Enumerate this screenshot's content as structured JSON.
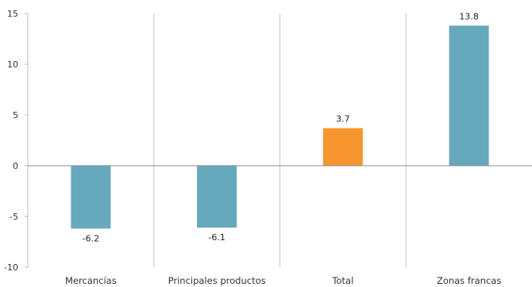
{
  "chart_data": {
    "type": "bar",
    "title": "",
    "xlabel": "",
    "ylabel": "",
    "categories": [
      "Mercancías",
      "Principales productos",
      "Total",
      "Zonas francas"
    ],
    "values": [
      -6.2,
      -6.1,
      3.7,
      13.8
    ],
    "data_labels": [
      "-6.2",
      "-6.1",
      "3.7",
      "13.8"
    ],
    "colors": [
      "#66a8bc",
      "#66a8bc",
      "#f7962e",
      "#66a8bc"
    ],
    "ylim": [
      -10,
      15
    ],
    "yticks": [
      -10,
      -5,
      0,
      5,
      10,
      15
    ],
    "ytick_labels": [
      "-10",
      "-5",
      "0",
      "5",
      "10",
      "15"
    ],
    "grid": "vertical category separators",
    "legend": "none"
  }
}
